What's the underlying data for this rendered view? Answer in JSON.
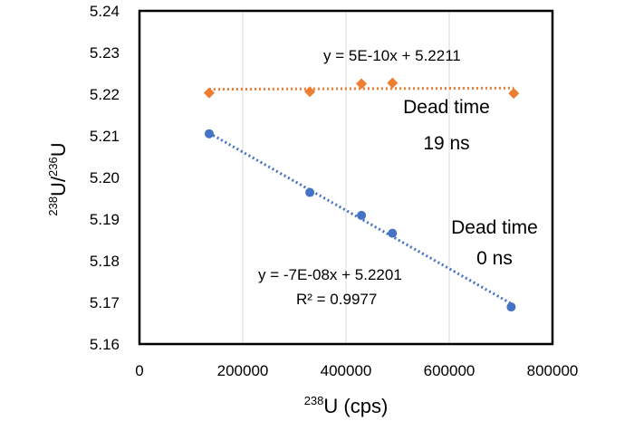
{
  "chart_data": {
    "type": "scatter",
    "xlabel": {
      "sup": "238",
      "main": "U (cps)"
    },
    "ylabel": {
      "sup1": "238",
      "main1": "U/",
      "sup2": "236",
      "main2": "U"
    },
    "xlim": [
      0,
      800000
    ],
    "ylim": [
      5.16,
      5.24
    ],
    "x_ticks": [
      {
        "value": 0,
        "label": "0"
      },
      {
        "value": 200000,
        "label": "200000"
      },
      {
        "value": 400000,
        "label": "400000"
      },
      {
        "value": 600000,
        "label": "600000"
      },
      {
        "value": 800000,
        "label": "800000"
      }
    ],
    "y_ticks": [
      {
        "value": 5.16,
        "label": "5.16"
      },
      {
        "value": 5.17,
        "label": "5.17"
      },
      {
        "value": 5.18,
        "label": "5.18"
      },
      {
        "value": 5.19,
        "label": "5.19"
      },
      {
        "value": 5.2,
        "label": "5.20"
      },
      {
        "value": 5.21,
        "label": "5.21"
      },
      {
        "value": 5.22,
        "label": "5.22"
      },
      {
        "value": 5.23,
        "label": "5.23"
      },
      {
        "value": 5.24,
        "label": "5.24"
      }
    ],
    "grid": "vertical",
    "series": [
      {
        "marker": "diamond",
        "color": "#ED7D31",
        "points": [
          {
            "x": 135000,
            "y": 5.2203
          },
          {
            "x": 330000,
            "y": 5.2206
          },
          {
            "x": 430000,
            "y": 5.2225
          },
          {
            "x": 490000,
            "y": 5.2227
          },
          {
            "x": 725000,
            "y": 5.2202
          }
        ],
        "trendline": {
          "slope": 5e-10,
          "intercept": 5.2211,
          "x_range": [
            135000,
            725000
          ]
        },
        "equation": "y = 5E-10x + 5.2211",
        "label_line1": "Dead time",
        "label_line2": "19 ns"
      },
      {
        "marker": "circle",
        "color": "#4472C4",
        "points": [
          {
            "x": 135000,
            "y": 5.2105
          },
          {
            "x": 330000,
            "y": 5.1964
          },
          {
            "x": 430000,
            "y": 5.1909
          },
          {
            "x": 490000,
            "y": 5.1866
          },
          {
            "x": 720000,
            "y": 5.1689
          }
        ],
        "trendline": {
          "slope": -7e-08,
          "intercept": 5.2201,
          "x_range": [
            135000,
            720000
          ]
        },
        "equation": "y = -7E-08x + 5.2201",
        "r_squared": "R² = 0.9977",
        "label_line1": "Dead time",
        "label_line2": "0 ns"
      }
    ]
  }
}
